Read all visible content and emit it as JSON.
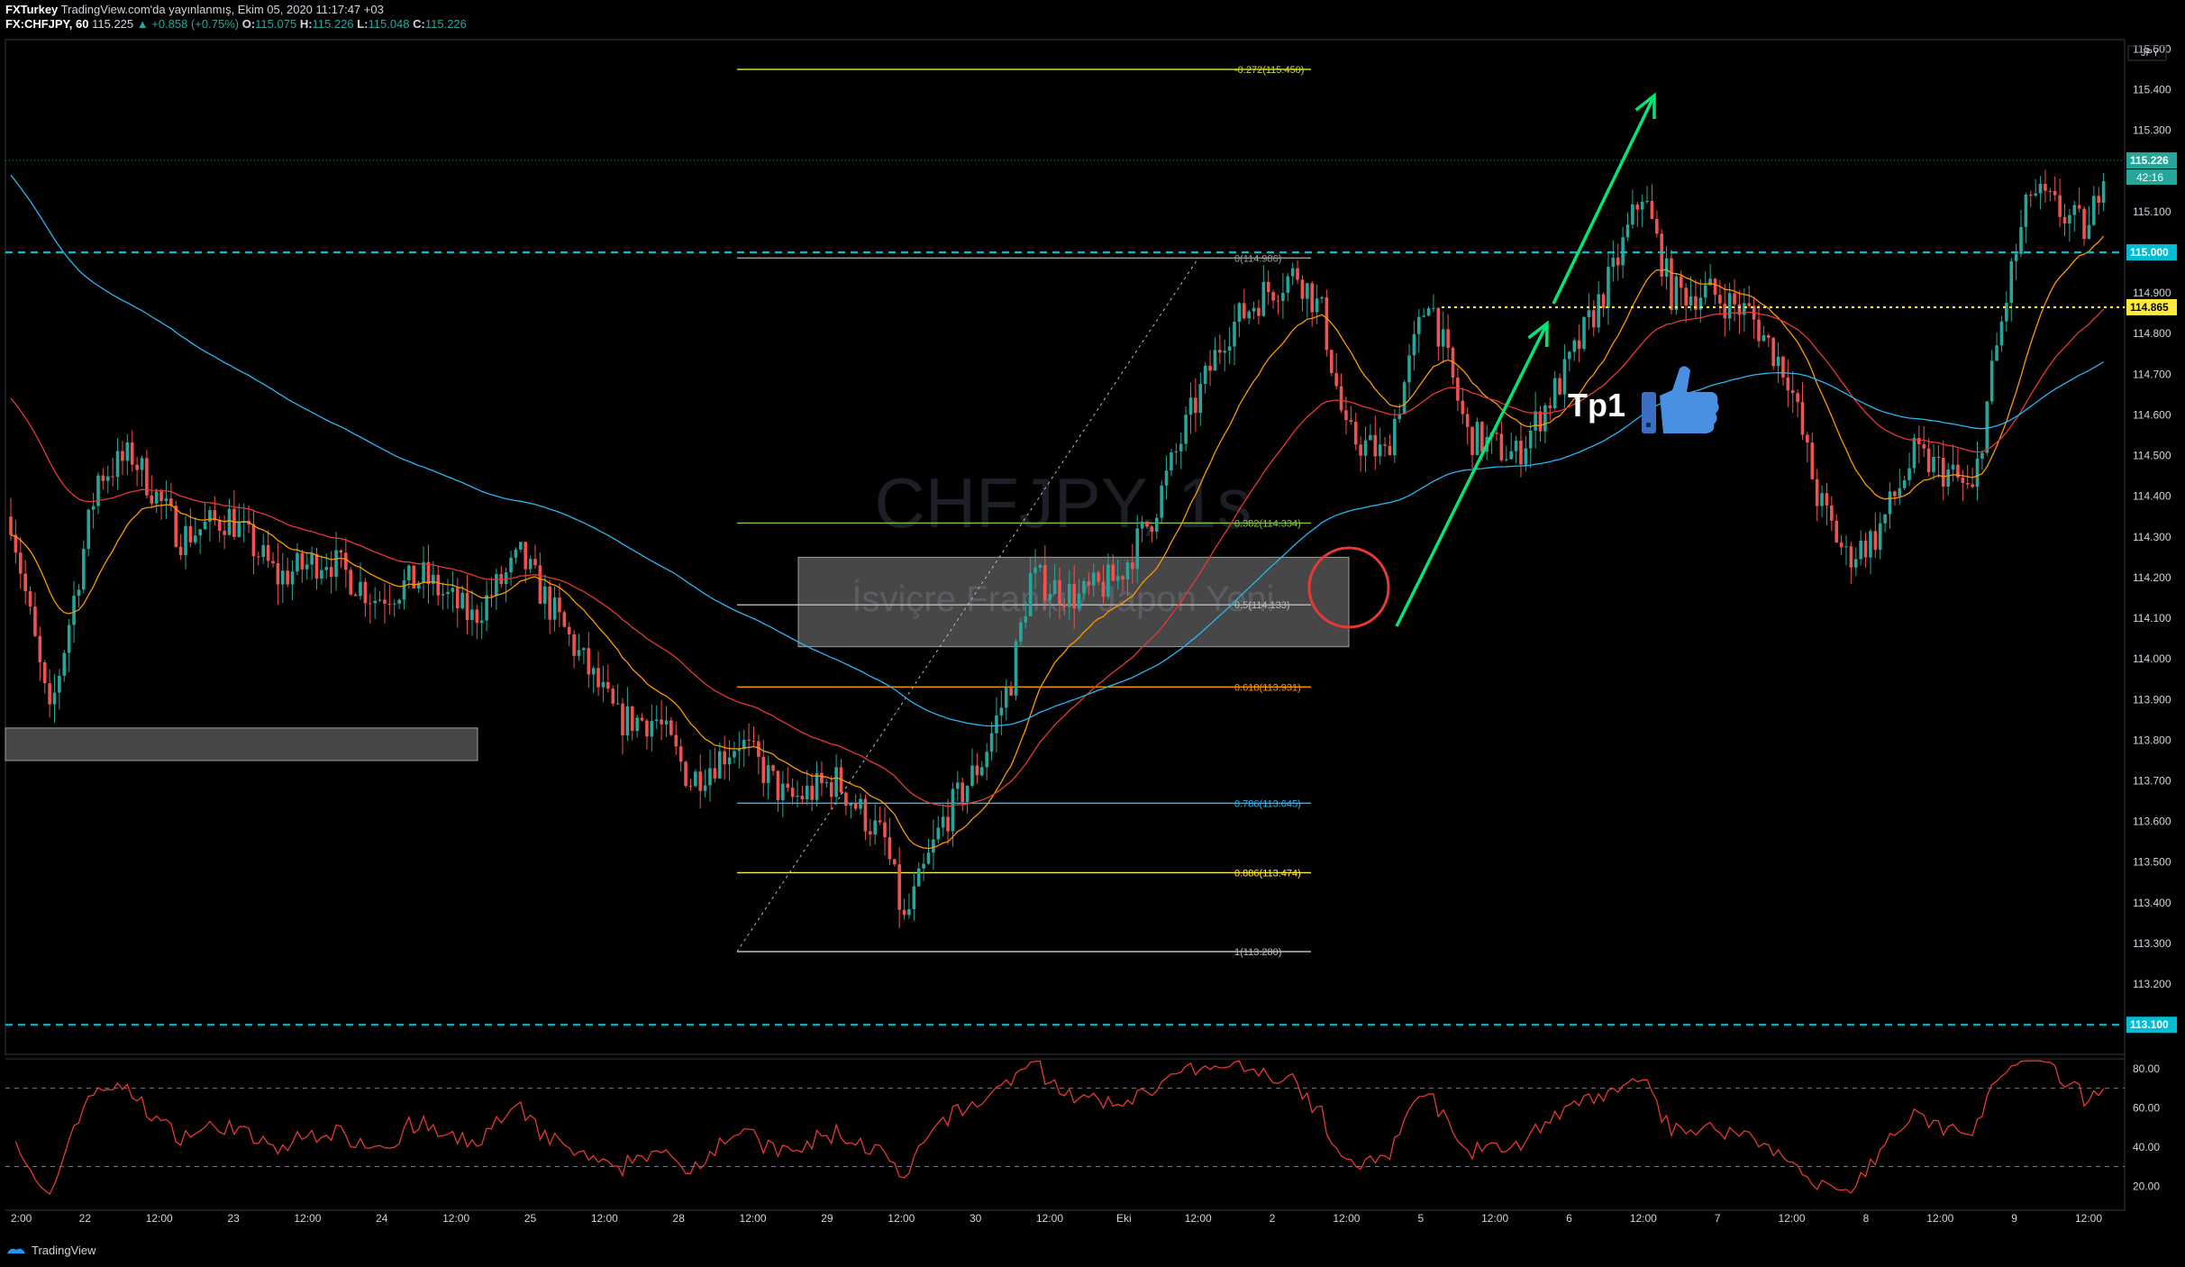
{
  "header": {
    "line1": {
      "publisher": "FXTurkey",
      "text": "TradingView.com'da yayınlanmış, Ekim 05, 2020 11:17:47 +03"
    },
    "line2": {
      "symbol": "FX:CHFJPY, 60",
      "last": "115.225",
      "change": "▲ +0.858 (+0.75%)",
      "o_label": "O:",
      "o": "115.075",
      "h_label": "H:",
      "h": "115.226",
      "l_label": "L:",
      "l": "115.048",
      "c_label": "C:",
      "c": "115.226"
    }
  },
  "watermark": {
    "symbol": "CHFJPY, 1s",
    "name": "İsviçre Frankı / Japon Yeni"
  },
  "footer": {
    "brand": "TradingView"
  },
  "colors": {
    "up": "#26a69a",
    "down": "#ef5350",
    "cyan_level": "#00bcd4",
    "yellow_level": "#ffeb3b",
    "ema_fast": "#ff9800",
    "ema_mid": "#e53935",
    "ema_slow": "#29b6f6",
    "rsi": "#e53935",
    "arrow": "#00e676",
    "circle": "#e53935",
    "thumb": "#4a90e2"
  },
  "chart_data": {
    "type": "candlestick",
    "symbol": "FX:CHFJPY",
    "interval": "60",
    "y_axis": {
      "currency": "JPY",
      "ylim": [
        113.0,
        115.5
      ],
      "ticks": [
        "115.500",
        "115.400",
        "115.300",
        "115.100",
        "114.900",
        "114.800",
        "114.700",
        "114.600",
        "114.500",
        "114.400",
        "114.300",
        "114.200",
        "114.100",
        "114.000",
        "113.900",
        "113.800",
        "113.700",
        "113.600",
        "113.500",
        "113.400",
        "113.300",
        "113.200"
      ]
    },
    "x_axis": {
      "ticks": [
        "2:00",
        "22",
        "12:00",
        "23",
        "12:00",
        "24",
        "12:00",
        "25",
        "12:00",
        "28",
        "12:00",
        "29",
        "12:00",
        "30",
        "12:00",
        "Eki",
        "12:00",
        "2",
        "12:00",
        "5",
        "12:00",
        "6",
        "12:00",
        "7",
        "12:00",
        "8",
        "12:00",
        "9",
        "12:00"
      ]
    },
    "price_labels": [
      {
        "value": 115.226,
        "text": "115.226",
        "sub": "42:16",
        "kind": "last"
      },
      {
        "value": 115.0,
        "text": "115.000",
        "kind": "cyan"
      },
      {
        "value": 114.865,
        "text": "114.865",
        "kind": "yellow"
      },
      {
        "value": 113.1,
        "text": "113.100",
        "kind": "cyan"
      }
    ],
    "fibonacci": [
      {
        "ratio": "-0.272",
        "price": 115.45,
        "label": "-0.272(115.450)",
        "color": "#cddc39"
      },
      {
        "ratio": "0",
        "price": 114.986,
        "label": "0(114.986)",
        "color": "#9e9e9e"
      },
      {
        "ratio": "0.382",
        "price": 114.334,
        "label": "0.382(114.334)",
        "color": "#8bc34a"
      },
      {
        "ratio": "0.5",
        "price": 114.133,
        "label": "0.5(114.133)",
        "color": "#bdbdbd"
      },
      {
        "ratio": "0.618",
        "price": 113.931,
        "label": "0.618(113.931)",
        "color": "#ff9800"
      },
      {
        "ratio": "0.786",
        "price": 113.645,
        "label": "0.786(113.645)",
        "color": "#29b6f6"
      },
      {
        "ratio": "0.886",
        "price": 113.474,
        "label": "0.886(113.474)",
        "color": "#ffeb3b"
      },
      {
        "ratio": "1",
        "price": 113.28,
        "label": "1(113.280)",
        "color": "#bdbdbd"
      }
    ],
    "zones": [
      {
        "top": 113.83,
        "bottom": 113.75
      },
      {
        "top": 114.25,
        "bottom": 114.03
      }
    ],
    "price_path": [
      [
        0,
        114.35
      ],
      [
        8,
        113.85
      ],
      [
        18,
        114.45
      ],
      [
        25,
        114.5
      ],
      [
        35,
        114.3
      ],
      [
        45,
        114.35
      ],
      [
        55,
        114.2
      ],
      [
        65,
        114.25
      ],
      [
        75,
        114.15
      ],
      [
        85,
        114.2
      ],
      [
        95,
        114.1
      ],
      [
        105,
        114.25
      ],
      [
        115,
        114.05
      ],
      [
        125,
        113.85
      ],
      [
        133,
        113.85
      ],
      [
        140,
        113.7
      ],
      [
        150,
        113.8
      ],
      [
        160,
        113.65
      ],
      [
        170,
        113.7
      ],
      [
        180,
        113.55
      ],
      [
        184,
        113.35
      ],
      [
        192,
        113.6
      ],
      [
        200,
        113.75
      ],
      [
        206,
        113.95
      ],
      [
        210,
        114.2
      ],
      [
        220,
        114.15
      ],
      [
        228,
        114.2
      ],
      [
        235,
        114.35
      ],
      [
        243,
        114.6
      ],
      [
        250,
        114.8
      ],
      [
        258,
        114.9
      ],
      [
        265,
        114.95
      ],
      [
        270,
        114.85
      ],
      [
        275,
        114.55
      ],
      [
        283,
        114.5
      ],
      [
        292,
        114.9
      ],
      [
        300,
        114.55
      ],
      [
        310,
        114.5
      ],
      [
        320,
        114.7
      ],
      [
        330,
        114.95
      ],
      [
        336,
        115.15
      ],
      [
        342,
        114.9
      ],
      [
        350,
        114.9
      ],
      [
        358,
        114.85
      ],
      [
        366,
        114.7
      ],
      [
        372,
        114.4
      ],
      [
        378,
        114.25
      ],
      [
        384,
        114.3
      ],
      [
        392,
        114.5
      ],
      [
        400,
        114.45
      ],
      [
        404,
        114.4
      ],
      [
        408,
        114.7
      ],
      [
        412,
        114.95
      ],
      [
        416,
        115.15
      ],
      [
        422,
        115.1
      ],
      [
        428,
        115.05
      ],
      [
        431,
        115.22
      ]
    ],
    "candles_total": 432,
    "candles_visible": 432,
    "ema": [
      {
        "name": "EMA fast",
        "color": "#ff9800"
      },
      {
        "name": "EMA mid",
        "color": "#e53935"
      },
      {
        "name": "EMA slow",
        "color": "#29b6f6"
      }
    ],
    "annotations": {
      "tp_label": "Tp1",
      "thumb": "thumbs-up-icon"
    },
    "rsi": {
      "ticks": [
        "80.00",
        "60.00",
        "40.00",
        "20.00"
      ],
      "levels": [
        70,
        30
      ],
      "ylim": [
        10,
        85
      ]
    },
    "grid": false
  }
}
